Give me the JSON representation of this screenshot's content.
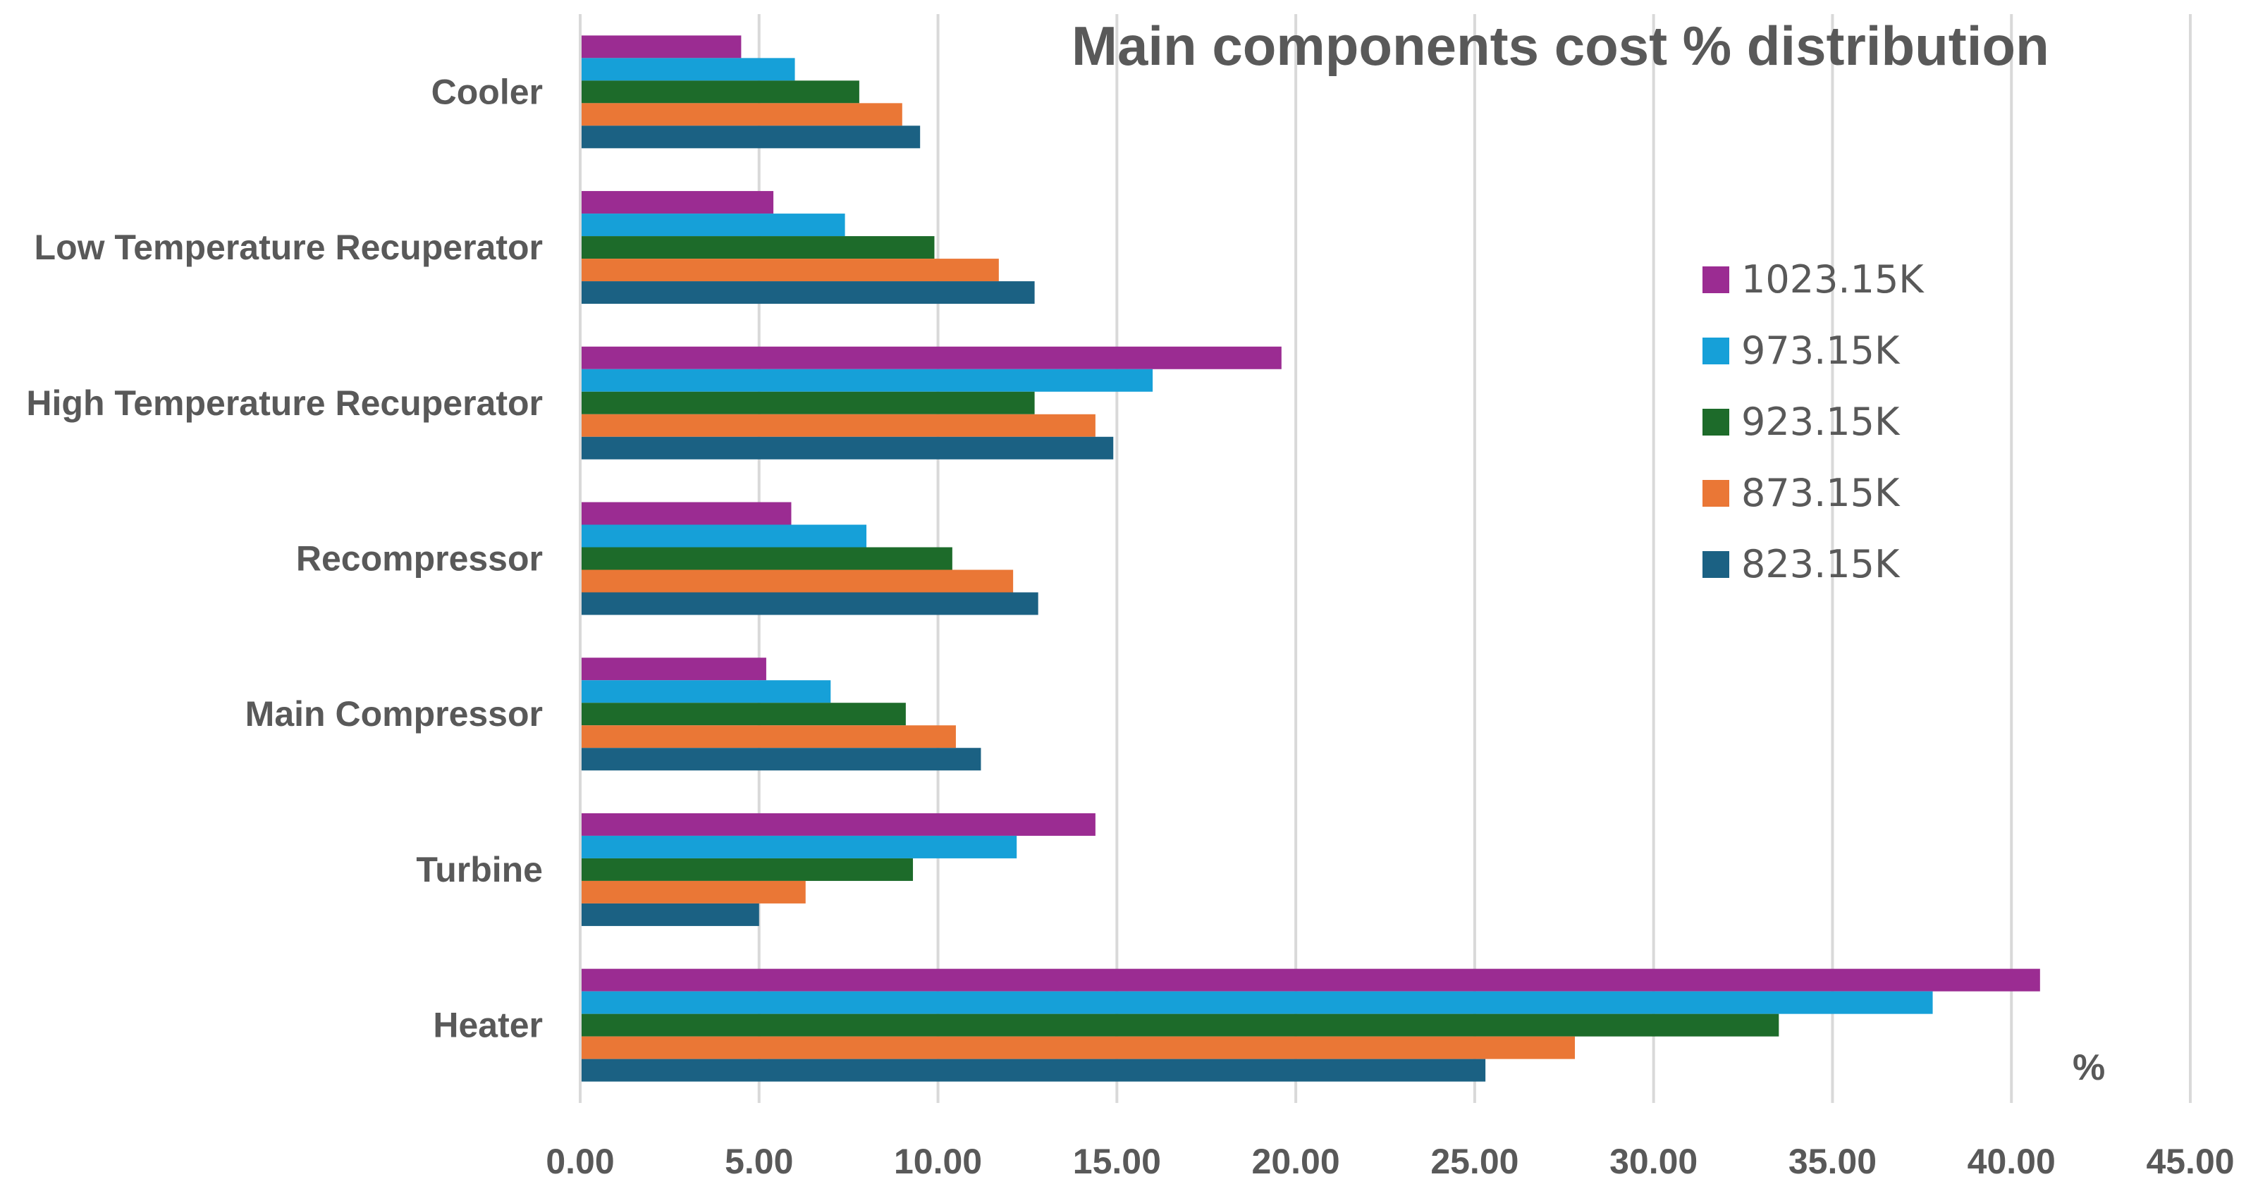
{
  "chart_data": {
    "type": "bar",
    "orientation": "horizontal",
    "title": "Main components cost % distribution",
    "unit_label": "%",
    "xlim": [
      0,
      45
    ],
    "x_ticks": [
      "0.00",
      "5.00",
      "10.00",
      "15.00",
      "20.00",
      "25.00",
      "30.00",
      "35.00",
      "40.00",
      "45.00"
    ],
    "grid": true,
    "legend_position": "right",
    "categories": [
      "Cooler",
      "Low Temperature Recuperator",
      "High Temperature Recuperator",
      "Recompressor",
      "Main Compressor",
      "Turbine",
      "Heater"
    ],
    "series": [
      {
        "name": "1023.15K",
        "color": "#9B2C92",
        "values": [
          4.5,
          5.4,
          19.6,
          5.9,
          5.2,
          14.4,
          40.8
        ]
      },
      {
        "name": "973.15K",
        "color": "#16A0D8",
        "values": [
          6.0,
          7.4,
          16.0,
          8.0,
          7.0,
          12.2,
          37.8
        ]
      },
      {
        "name": "923.15K",
        "color": "#1D6B2A",
        "values": [
          7.8,
          9.9,
          12.7,
          10.4,
          9.1,
          9.3,
          33.5
        ]
      },
      {
        "name": "873.15K",
        "color": "#EA7736",
        "values": [
          9.0,
          11.7,
          14.4,
          12.1,
          10.5,
          6.3,
          27.8
        ]
      },
      {
        "name": "823.15K",
        "color": "#1B6183",
        "values": [
          9.5,
          12.7,
          14.9,
          12.8,
          11.2,
          5.0,
          25.3
        ]
      }
    ]
  }
}
